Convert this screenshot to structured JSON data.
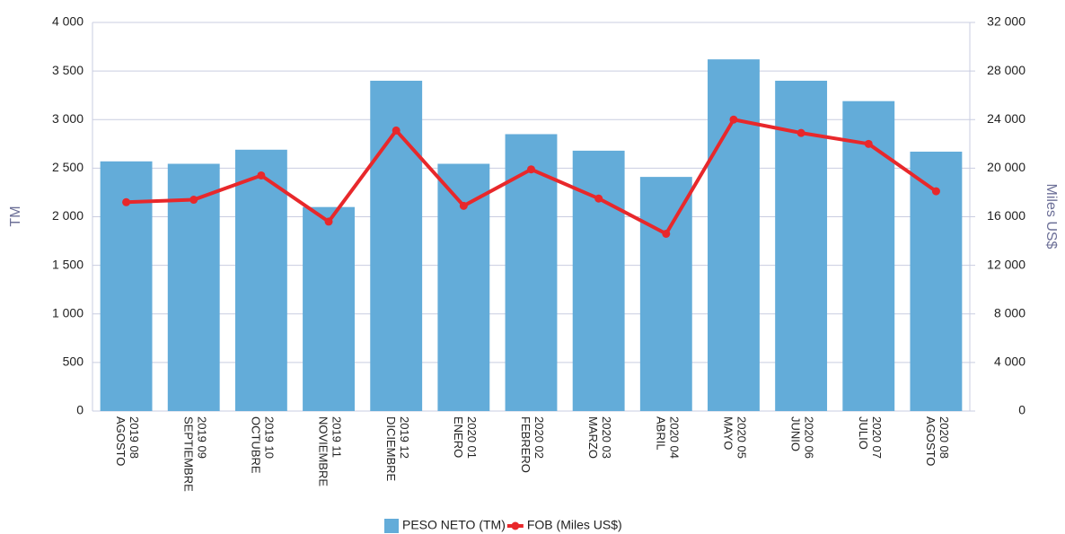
{
  "chart_data": {
    "type": "bar_line",
    "y_label": "TM",
    "y2_label": "Miles US$",
    "categories": [
      [
        "2019 08",
        "AGOSTO"
      ],
      [
        "2019 09",
        "SEPTIEMBRE"
      ],
      [
        "2019 10",
        "OCTUBRE"
      ],
      [
        "2019 11",
        "NOVIEMBRE"
      ],
      [
        "2019 12",
        "DICIEMBRE"
      ],
      [
        "2020 01",
        "ENERO"
      ],
      [
        "2020 02",
        "FEBRERO"
      ],
      [
        "2020 03",
        "MARZO"
      ],
      [
        "2020 04",
        "ABRIL"
      ],
      [
        "2020 05",
        "MAYO"
      ],
      [
        "2020 06",
        "JUNIO"
      ],
      [
        "2020 07",
        "JULIO"
      ],
      [
        "2020 08",
        "AGOSTO"
      ]
    ],
    "series": [
      {
        "name": "PESO NETO (TM)",
        "type": "bar",
        "color": "#63acd9",
        "axis": "y",
        "values": [
          2570,
          2545,
          2690,
          2100,
          3400,
          2545,
          2850,
          2680,
          2410,
          3620,
          3400,
          3190,
          2670
        ]
      },
      {
        "name": "FOB (Miles US$)",
        "type": "line",
        "color": "#e8282b",
        "axis": "y2",
        "values": [
          17200,
          17400,
          19400,
          15600,
          23100,
          16900,
          19900,
          17500,
          14600,
          24000,
          22900,
          22000,
          18100
        ]
      }
    ],
    "ylim": [
      0,
      4000
    ],
    "yticks": [
      0,
      500,
      {
        "value": 1000,
        "label": "1 000"
      },
      {
        "value": 1500,
        "label": "1 500"
      },
      {
        "value": 2000,
        "label": "2 000"
      },
      {
        "value": 2500,
        "label": "2 500"
      },
      {
        "value": 3000,
        "label": "3 000"
      },
      {
        "value": 3500,
        "label": "3 500"
      },
      {
        "value": 4000,
        "label": "4 000"
      }
    ],
    "y2lim": [
      0,
      32000
    ],
    "y2ticks": [
      0,
      {
        "value": 4000,
        "label": "4 000"
      },
      {
        "value": 8000,
        "label": "8 000"
      },
      {
        "value": 12000,
        "label": "12 000"
      },
      {
        "value": 16000,
        "label": "16 000"
      },
      {
        "value": 20000,
        "label": "20 000"
      },
      {
        "value": 24000,
        "label": "24 000"
      },
      {
        "value": 28000,
        "label": "28 000"
      },
      {
        "value": 32000,
        "label": "32 000"
      }
    ],
    "grid": true,
    "legend": "bottom"
  }
}
